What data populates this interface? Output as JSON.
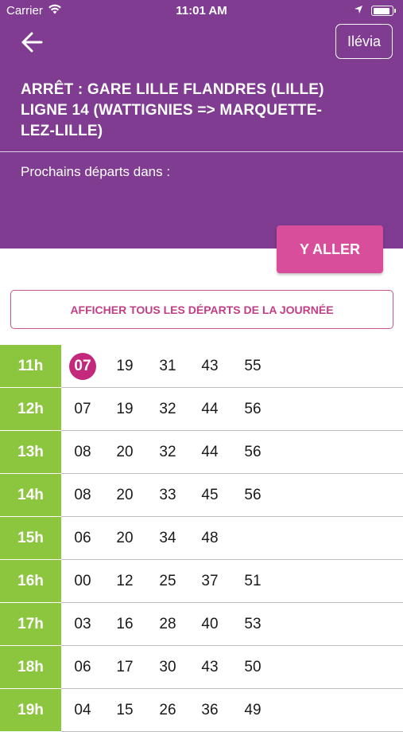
{
  "status_bar": {
    "carrier": "Carrier",
    "time": "11:01 AM",
    "battery_level": 0.95
  },
  "header": {
    "brand_label": "Ilévia",
    "stop_line1": "ARRÊT : GARE LILLE FLANDRES (LILLE)",
    "stop_line2": "LIGNE 14 (WATTIGNIES => MARQUETTE-",
    "stop_line3": "LEZ-LILLE)",
    "next_departures_label": "Prochains départs dans :",
    "go_label": "Y ALLER"
  },
  "all_departures_label": "AFFICHER TOUS LES DÉPARTS DE LA JOURNÉE",
  "colors": {
    "header_bg": "#7f3c91",
    "accent_pink": "#d94e9b",
    "hour_green": "#8cc63f",
    "next_highlight": "#c4287a"
  },
  "timetable": [
    {
      "hour": "11h",
      "minutes": [
        "07",
        "19",
        "31",
        "43",
        "55"
      ],
      "next_index": 0
    },
    {
      "hour": "12h",
      "minutes": [
        "07",
        "19",
        "32",
        "44",
        "56"
      ]
    },
    {
      "hour": "13h",
      "minutes": [
        "08",
        "20",
        "32",
        "44",
        "56"
      ]
    },
    {
      "hour": "14h",
      "minutes": [
        "08",
        "20",
        "33",
        "45",
        "56"
      ]
    },
    {
      "hour": "15h",
      "minutes": [
        "06",
        "20",
        "34",
        "48"
      ]
    },
    {
      "hour": "16h",
      "minutes": [
        "00",
        "12",
        "25",
        "37",
        "51"
      ]
    },
    {
      "hour": "17h",
      "minutes": [
        "03",
        "16",
        "28",
        "40",
        "53"
      ]
    },
    {
      "hour": "18h",
      "minutes": [
        "06",
        "17",
        "30",
        "43",
        "50"
      ]
    },
    {
      "hour": "19h",
      "minutes": [
        "04",
        "15",
        "26",
        "36",
        "49"
      ]
    }
  ]
}
